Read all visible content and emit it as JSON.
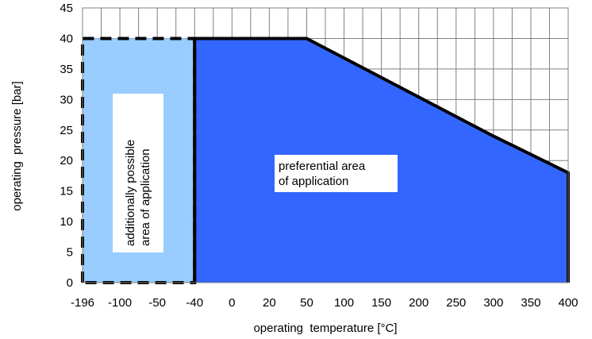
{
  "chart_data": {
    "type": "area",
    "xlabel": "operating  temperature [°C]",
    "ylabel": "operating  pressure [bar]",
    "x_ticks": [
      "-196",
      "-100",
      "-50",
      "-40",
      "0",
      "20",
      "50",
      "100",
      "150",
      "200",
      "250",
      "300",
      "350",
      "400"
    ],
    "y_ticks": [
      "0",
      "5",
      "10",
      "15",
      "20",
      "25",
      "30",
      "35",
      "40",
      "45"
    ],
    "ylim": [
      0,
      45
    ],
    "grid": true,
    "regions": [
      {
        "label": "additionally possible area of application",
        "label_lines": [
          "additionally possible",
          "area of application"
        ],
        "color": "#99ccff",
        "border": "dashed",
        "points": [
          [
            "-196",
            0
          ],
          [
            "-196",
            40
          ],
          [
            "-40",
            40
          ],
          [
            "-40",
            0
          ]
        ]
      },
      {
        "label": "preferential area of application",
        "label_lines": [
          "preferential area",
          "of application"
        ],
        "color": "#3366ff",
        "border": "solid",
        "points": [
          [
            "-40",
            0
          ],
          [
            "-40",
            40
          ],
          [
            "50",
            40
          ],
          [
            "300",
            24
          ],
          [
            "400",
            18
          ],
          [
            "400",
            0
          ]
        ]
      }
    ]
  }
}
